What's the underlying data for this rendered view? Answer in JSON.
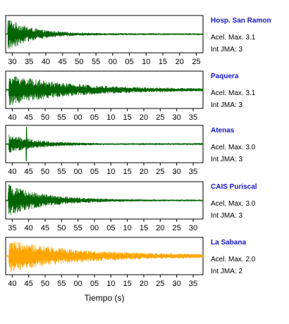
{
  "chart_data": {
    "type": "line",
    "xlabel": "Tiempo (s)",
    "panels": [
      {
        "station": "Hosp. San Ramon",
        "pga_label": "Acel. Max. 3.1",
        "jma_label": "Int JMA: 3",
        "color": "#006400",
        "ticks": [
          "30",
          "35",
          "40",
          "45",
          "50",
          "55",
          "00",
          "05",
          "10",
          "15",
          "20",
          "25"
        ],
        "xlim_s": [
          28,
          87
        ],
        "onset_s": 28.6,
        "decay_s": 7.0,
        "peak_amp": 0.95,
        "tail_amp": 0.05
      },
      {
        "station": "Paquera",
        "pga_label": "Acel. Max. 3.1",
        "jma_label": "Int JMA: 3",
        "color": "#006400",
        "ticks": [
          "40",
          "45",
          "50",
          "55",
          "00",
          "05",
          "10",
          "15",
          "20",
          "25",
          "30",
          "35"
        ],
        "xlim_s": [
          38,
          98
        ],
        "onset_s": 39.0,
        "decay_s": 18.0,
        "peak_amp": 0.9,
        "tail_amp": 0.06
      },
      {
        "station": "Atenas",
        "pga_label": "Acel. Max. 3.0",
        "jma_label": "Int JMA: 3",
        "color": "#006400",
        "ticks": [
          "40",
          "45",
          "50",
          "55",
          "00",
          "05",
          "10",
          "15",
          "20",
          "25",
          "30",
          "35"
        ],
        "xlim_s": [
          38,
          98
        ],
        "onset_s": 39.0,
        "decay_s": 9.0,
        "peak_amp": 0.55,
        "tail_amp": 0.03,
        "spike_s": 44.3,
        "spike_amp": 0.95
      },
      {
        "station": "CAIS Puriscal",
        "pga_label": "Acel. Max. 3.0",
        "jma_label": "Int JMA: 3",
        "color": "#006400",
        "ticks": [
          "35",
          "40",
          "45",
          "50",
          "55",
          "00",
          "05",
          "10",
          "15",
          "20",
          "25",
          "30"
        ],
        "xlim_s": [
          33,
          93
        ],
        "onset_s": 33.8,
        "decay_s": 11.0,
        "peak_amp": 0.9,
        "tail_amp": 0.04
      },
      {
        "station": "La Sabana",
        "pga_label": "Acel. Max. 2.0",
        "jma_label": "Int JMA: 2",
        "color": "#ffa500",
        "ticks": [
          "40",
          "45",
          "50",
          "55",
          "00",
          "05",
          "10",
          "15",
          "20",
          "25",
          "30",
          "35"
        ],
        "xlim_s": [
          38,
          98
        ],
        "onset_s": 39.0,
        "decay_s": 20.0,
        "peak_amp": 0.9,
        "tail_amp": 0.08
      }
    ]
  }
}
